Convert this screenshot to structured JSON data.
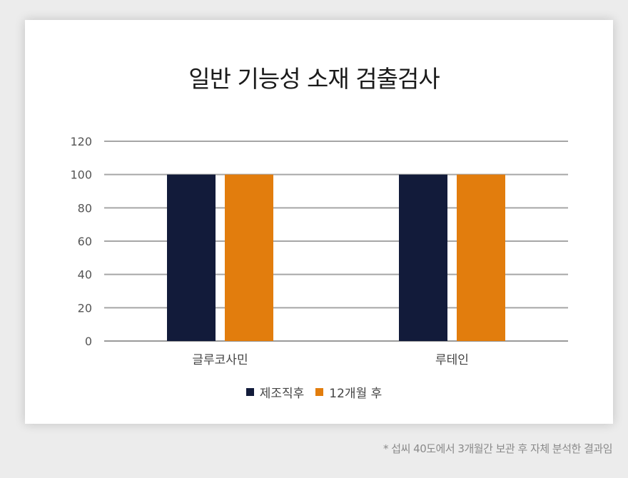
{
  "chart_data": {
    "type": "bar",
    "title": "일반 기능성 소재 검출검사",
    "categories": [
      "글루코사민",
      "루테인"
    ],
    "series": [
      {
        "name": "제조직후",
        "values": [
          100,
          100
        ],
        "color": "#121b3a"
      },
      {
        "name": "12개월 후",
        "values": [
          100,
          100
        ],
        "color": "#e27d0d"
      }
    ],
    "yticks": [
      0,
      20,
      40,
      60,
      80,
      100,
      120
    ],
    "ylim": [
      0,
      120
    ],
    "grid": true,
    "legend_position": "bottom"
  },
  "footnote": "* 섭씨 40도에서 3개월간 보관 후 자체 분석한 결과임"
}
